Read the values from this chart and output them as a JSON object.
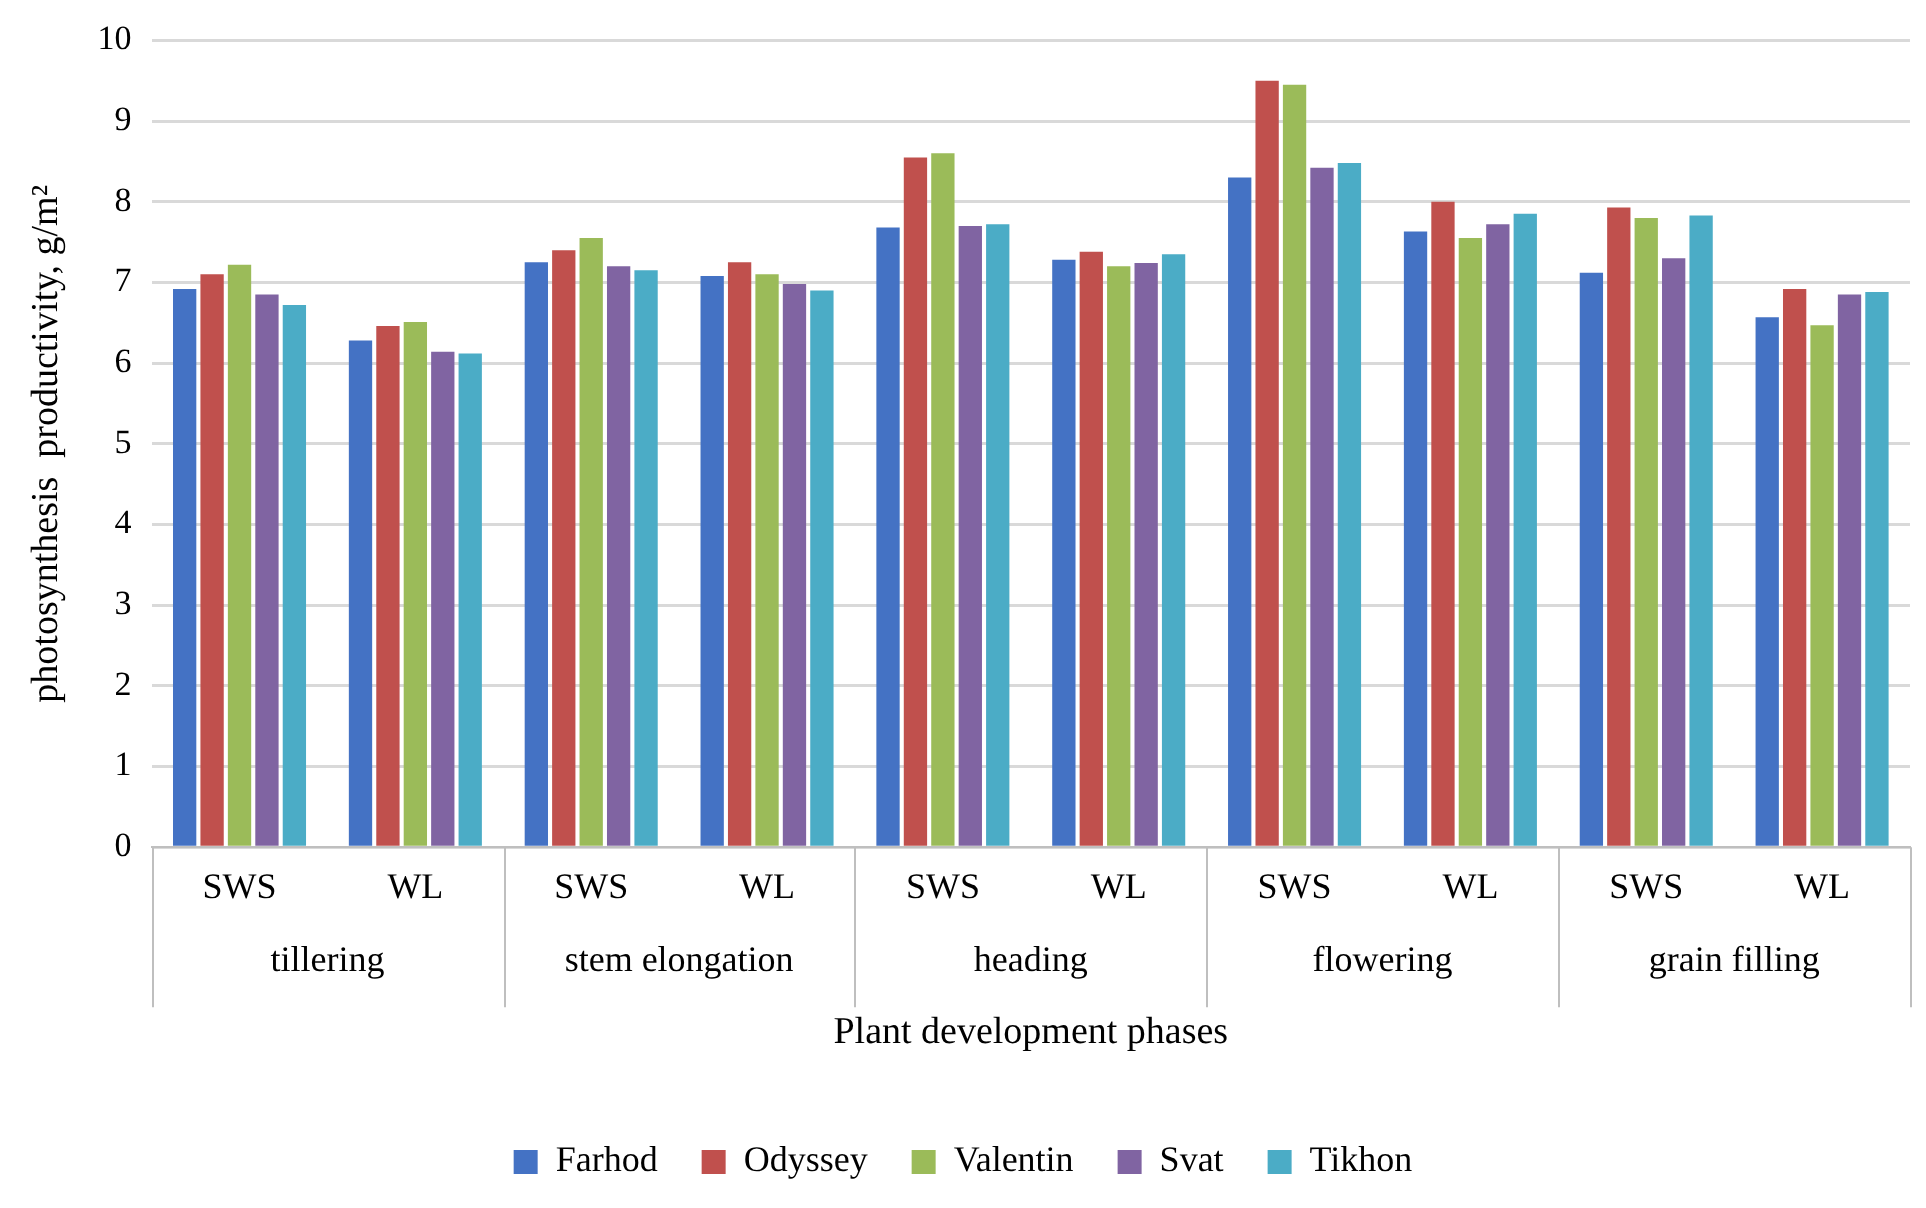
{
  "chart_data": {
    "type": "bar",
    "xlabel": "Plant development phases",
    "ylabel": "photosynthesis  productivity, g/m²",
    "categories": [
      "SWS",
      "WL",
      "SWS",
      "WL",
      "SWS",
      "WL",
      "SWS",
      "WL",
      "SWS",
      "WL"
    ],
    "annotations": [
      "tillering",
      "stem elongation",
      "heading",
      "flowering",
      "grain filling"
    ],
    "series": [
      {
        "name": "Farhod",
        "color": "#4472c4",
        "values": [
          6.92,
          6.28,
          7.25,
          7.08,
          7.68,
          7.28,
          8.3,
          7.63,
          7.12,
          6.57
        ]
      },
      {
        "name": "Odyssey",
        "color": "#c0504d",
        "values": [
          7.1,
          6.46,
          7.4,
          7.25,
          8.55,
          7.38,
          9.5,
          8.0,
          7.93,
          6.92
        ]
      },
      {
        "name": "Valentin",
        "color": "#9bbb59",
        "values": [
          7.22,
          6.51,
          7.55,
          7.1,
          8.6,
          7.2,
          9.45,
          7.55,
          7.8,
          6.47
        ]
      },
      {
        "name": "Svat",
        "color": "#8064a2",
        "values": [
          6.85,
          6.14,
          7.2,
          6.98,
          7.7,
          7.24,
          8.42,
          7.72,
          7.3,
          6.85
        ]
      },
      {
        "name": "Tikhon",
        "color": "#4bacc6",
        "values": [
          6.72,
          6.12,
          7.15,
          6.9,
          7.72,
          7.35,
          8.48,
          7.85,
          7.83,
          6.88
        ]
      }
    ],
    "ylim": [
      0,
      10
    ],
    "yticks": [
      0,
      1,
      2,
      3,
      4,
      5,
      6,
      7,
      8,
      9,
      10
    ],
    "grid": "y",
    "legend": "bottom"
  }
}
